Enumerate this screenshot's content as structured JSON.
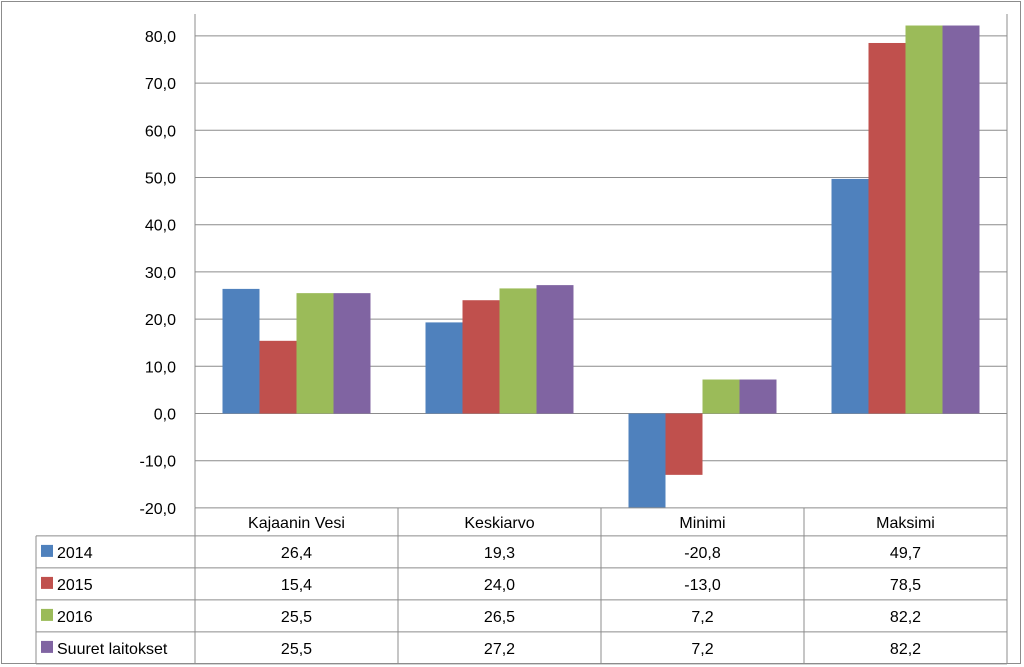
{
  "chart_data": {
    "type": "bar",
    "categories": [
      "Kajaanin Vesi",
      "Keskiarvo",
      "Minimi",
      "Maksimi"
    ],
    "series": [
      {
        "name": "2014",
        "values": [
          26.4,
          19.3,
          -20.8,
          49.7
        ],
        "labels": [
          "26,4",
          "19,3",
          "-20,8",
          "49,7"
        ],
        "color": "#4f81bd"
      },
      {
        "name": "2015",
        "values": [
          15.4,
          24.0,
          -13.0,
          78.5
        ],
        "labels": [
          "15,4",
          "24,0",
          "-13,0",
          "78,5"
        ],
        "color": "#c0504d"
      },
      {
        "name": "2016",
        "values": [
          25.5,
          26.5,
          7.2,
          82.2
        ],
        "labels": [
          "25,5",
          "26,5",
          "7,2",
          "82,2"
        ],
        "color": "#9bbb59"
      },
      {
        "name": "Suuret laitokset",
        "values": [
          25.5,
          27.2,
          7.2,
          82.2
        ],
        "labels": [
          "25,5",
          "27,2",
          "7,2",
          "82,2"
        ],
        "color": "#8064a2"
      }
    ],
    "ylim": [
      -20,
      85
    ],
    "yticks": [
      -20,
      -10,
      0,
      10,
      20,
      30,
      40,
      50,
      60,
      70,
      80
    ],
    "ytick_labels": [
      "-20,0",
      "-10,0",
      "0,0",
      "10,0",
      "20,0",
      "30,0",
      "40,0",
      "50,0",
      "60,0",
      "70,0",
      "80,0"
    ],
    "grid": true,
    "legend": "data-table-below"
  }
}
